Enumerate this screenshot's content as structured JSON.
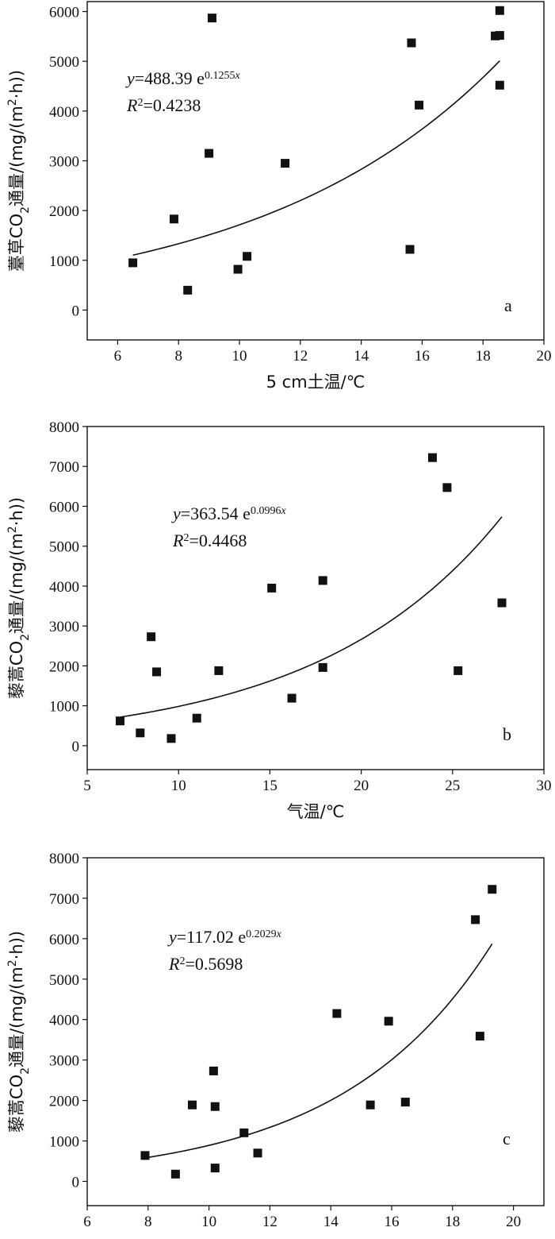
{
  "chart_data": [
    {
      "type": "scatter",
      "panel_label": "a",
      "xlabel": "5 cm土温/℃",
      "ylabel_parts": {
        "pre": "薹草CO",
        "sub": "2",
        "mid": "通量/(mg/(m",
        "sup": "2",
        "post": "·h))"
      },
      "xlim": [
        5,
        20
      ],
      "ylim": [
        -600,
        6200
      ],
      "xticks": [
        6,
        8,
        10,
        12,
        14,
        16,
        18,
        20
      ],
      "yticks": [
        0,
        1000,
        2000,
        3000,
        4000,
        5000,
        6000
      ],
      "xtick_labels": [
        "6",
        "8",
        "10",
        "12",
        "14",
        "16",
        "18",
        "20"
      ],
      "ytick_labels": [
        "0",
        "1000",
        "2000",
        "3000",
        "4000",
        "5000",
        "6000"
      ],
      "points": [
        {
          "x": 6.5,
          "y": 950
        },
        {
          "x": 7.85,
          "y": 1830
        },
        {
          "x": 8.3,
          "y": 400
        },
        {
          "x": 9.0,
          "y": 3150
        },
        {
          "x": 9.1,
          "y": 5870
        },
        {
          "x": 9.95,
          "y": 820
        },
        {
          "x": 10.25,
          "y": 1080
        },
        {
          "x": 11.5,
          "y": 2950
        },
        {
          "x": 15.6,
          "y": 1220
        },
        {
          "x": 15.65,
          "y": 5370
        },
        {
          "x": 15.9,
          "y": 4120
        },
        {
          "x": 18.4,
          "y": 5510
        },
        {
          "x": 18.55,
          "y": 5520
        },
        {
          "x": 18.55,
          "y": 6020
        },
        {
          "x": 18.55,
          "y": 4520
        }
      ],
      "fit": {
        "a": 488.39,
        "b": 0.1255,
        "x_range": [
          6.5,
          18.55
        ]
      },
      "equation": {
        "y": "y",
        "eq": "=488.39 e",
        "exp": "0.1255",
        "x": "x"
      },
      "r2": {
        "R": "R",
        "sup": "2",
        "val": "=0.4238"
      }
    },
    {
      "type": "scatter",
      "panel_label": "b",
      "xlabel": "气温/℃",
      "ylabel_parts": {
        "pre": "藜蒿CO",
        "sub": "2",
        "mid": "通量/(mg/(m",
        "sup": "2",
        "post": "·h))"
      },
      "xlim": [
        5,
        30
      ],
      "ylim": [
        -600,
        8000
      ],
      "xticks": [
        5,
        10,
        15,
        20,
        25,
        30
      ],
      "yticks": [
        0,
        1000,
        2000,
        3000,
        4000,
        5000,
        6000,
        7000,
        8000
      ],
      "xtick_labels": [
        "5",
        "10",
        "15",
        "20",
        "25",
        "30"
      ],
      "ytick_labels": [
        "0",
        "1000",
        "2000",
        "3000",
        "4000",
        "5000",
        "6000",
        "7000",
        "8000"
      ],
      "points": [
        {
          "x": 6.8,
          "y": 620
        },
        {
          "x": 7.9,
          "y": 320
        },
        {
          "x": 8.5,
          "y": 2730
        },
        {
          "x": 8.8,
          "y": 1850
        },
        {
          "x": 9.6,
          "y": 180
        },
        {
          "x": 11.0,
          "y": 690
        },
        {
          "x": 12.2,
          "y": 1880
        },
        {
          "x": 15.1,
          "y": 3950
        },
        {
          "x": 16.2,
          "y": 1190
        },
        {
          "x": 17.9,
          "y": 4140
        },
        {
          "x": 17.9,
          "y": 1960
        },
        {
          "x": 23.9,
          "y": 7220
        },
        {
          "x": 24.7,
          "y": 6470
        },
        {
          "x": 25.3,
          "y": 1880
        },
        {
          "x": 27.7,
          "y": 3580
        }
      ],
      "fit": {
        "a": 363.54,
        "b": 0.0996,
        "x_range": [
          6.8,
          27.7
        ]
      },
      "equation": {
        "y": "y",
        "eq": "=363.54 e",
        "exp": "0.0996",
        "x": "x"
      },
      "r2": {
        "R": "R",
        "sup": "2",
        "val": "=0.4468"
      }
    },
    {
      "type": "scatter",
      "panel_label": "c",
      "xlabel": "5 cm土温/℃",
      "ylabel_parts": {
        "pre": "藜蒿CO",
        "sub": "2",
        "mid": "通量/(mg/(m",
        "sup": "2",
        "post": "·h))"
      },
      "xlim": [
        6,
        21
      ],
      "ylim": [
        -600,
        8000
      ],
      "xticks": [
        6,
        8,
        10,
        12,
        14,
        16,
        18,
        20
      ],
      "yticks": [
        0,
        1000,
        2000,
        3000,
        4000,
        5000,
        6000,
        7000,
        8000
      ],
      "xtick_labels": [
        "6",
        "8",
        "10",
        "12",
        "14",
        "16",
        "18",
        "20"
      ],
      "ytick_labels": [
        "0",
        "1000",
        "2000",
        "3000",
        "4000",
        "5000",
        "6000",
        "7000",
        "8000"
      ],
      "points": [
        {
          "x": 7.9,
          "y": 640
        },
        {
          "x": 8.9,
          "y": 180
        },
        {
          "x": 9.45,
          "y": 1890
        },
        {
          "x": 10.15,
          "y": 2730
        },
        {
          "x": 10.2,
          "y": 1850
        },
        {
          "x": 10.2,
          "y": 330
        },
        {
          "x": 11.15,
          "y": 1200
        },
        {
          "x": 11.6,
          "y": 700
        },
        {
          "x": 14.2,
          "y": 4150
        },
        {
          "x": 15.3,
          "y": 1890
        },
        {
          "x": 15.9,
          "y": 3960
        },
        {
          "x": 16.45,
          "y": 1960
        },
        {
          "x": 18.75,
          "y": 6470
        },
        {
          "x": 18.9,
          "y": 3590
        },
        {
          "x": 19.3,
          "y": 7220
        }
      ],
      "fit": {
        "a": 117.02,
        "b": 0.2029,
        "x_range": [
          7.9,
          19.3
        ]
      },
      "equation": {
        "y": "y",
        "eq": "=117.02 e",
        "exp": "0.2029",
        "x": "x"
      },
      "r2": {
        "R": "R",
        "sup": "2",
        "val": "=0.5698"
      }
    }
  ]
}
